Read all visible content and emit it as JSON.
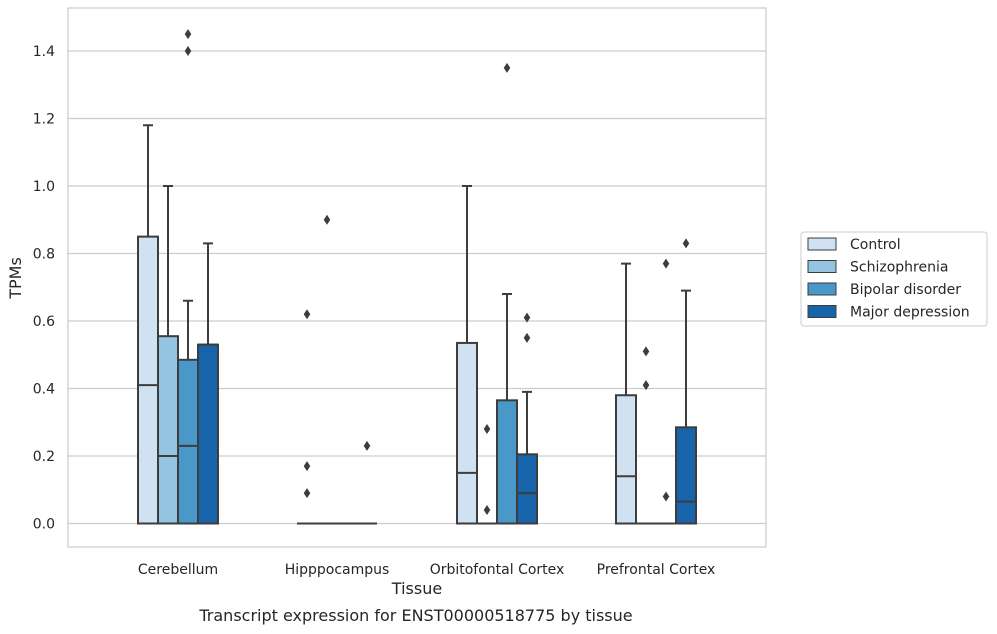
{
  "caption": "Transcript expression for ENST00000518775 by tissue",
  "chart_data": {
    "type": "boxplot",
    "title": "",
    "xlabel": "Tissue",
    "ylabel": "TPMs",
    "ylim": [
      -0.07,
      1.53
    ],
    "yticks": [
      0.0,
      0.2,
      0.4,
      0.6,
      0.8,
      1.0,
      1.2,
      1.4
    ],
    "ytick_labels": [
      "0.0",
      "0.2",
      "0.4",
      "0.6",
      "0.8",
      "1.0",
      "1.2",
      "1.4"
    ],
    "grid": "horizontal",
    "legend_position": "right",
    "categories": [
      "Cerebellum",
      "Hipppocampus",
      "Orbitofontal Cortex",
      "Prefrontal Cortex"
    ],
    "series": [
      {
        "name": "Control",
        "color": "#d0e1f2",
        "boxes": [
          {
            "q1": 0.0,
            "median": 0.41,
            "q3": 0.85,
            "whisker_low": 0.0,
            "whisker_high": 1.18,
            "outliers": []
          },
          {
            "q1": 0.0,
            "median": 0.0,
            "q3": 0.0,
            "whisker_low": 0.0,
            "whisker_high": 0.0,
            "outliers": [
              0.09,
              0.17,
              0.62
            ]
          },
          {
            "q1": 0.0,
            "median": 0.15,
            "q3": 0.535,
            "whisker_low": 0.0,
            "whisker_high": 1.0,
            "outliers": []
          },
          {
            "q1": 0.0,
            "median": 0.14,
            "q3": 0.38,
            "whisker_low": 0.0,
            "whisker_high": 0.77,
            "outliers": []
          }
        ]
      },
      {
        "name": "Schizophrenia",
        "color": "#94c4df",
        "boxes": [
          {
            "q1": 0.0,
            "median": 0.2,
            "q3": 0.555,
            "whisker_low": 0.0,
            "whisker_high": 1.0,
            "outliers": []
          },
          {
            "q1": 0.0,
            "median": 0.0,
            "q3": 0.0,
            "whisker_low": 0.0,
            "whisker_high": 0.0,
            "outliers": [
              0.9
            ]
          },
          {
            "q1": 0.0,
            "median": 0.0,
            "q3": 0.0,
            "whisker_low": 0.0,
            "whisker_high": 0.0,
            "outliers": [
              0.04,
              0.28
            ]
          },
          {
            "q1": 0.0,
            "median": 0.0,
            "q3": 0.0,
            "whisker_low": 0.0,
            "whisker_high": 0.0,
            "outliers": [
              0.41,
              0.51
            ]
          }
        ]
      },
      {
        "name": "Bipolar disorder",
        "color": "#4a98c9",
        "boxes": [
          {
            "q1": 0.0,
            "median": 0.23,
            "q3": 0.485,
            "whisker_low": 0.0,
            "whisker_high": 0.66,
            "outliers": [
              1.4,
              1.45
            ]
          },
          {
            "q1": 0.0,
            "median": 0.0,
            "q3": 0.0,
            "whisker_low": 0.0,
            "whisker_high": 0.0,
            "outliers": []
          },
          {
            "q1": 0.0,
            "median": 0.0,
            "q3": 0.365,
            "whisker_low": 0.0,
            "whisker_high": 0.68,
            "outliers": [
              1.35
            ]
          },
          {
            "q1": 0.0,
            "median": 0.0,
            "q3": 0.0,
            "whisker_low": 0.0,
            "whisker_high": 0.0,
            "outliers": [
              0.08,
              0.77
            ]
          }
        ]
      },
      {
        "name": "Major depression",
        "color": "#1764ab",
        "boxes": [
          {
            "q1": 0.0,
            "median": 0.53,
            "q3": 0.53,
            "whisker_low": 0.0,
            "whisker_high": 0.83,
            "outliers": []
          },
          {
            "q1": 0.0,
            "median": 0.0,
            "q3": 0.0,
            "whisker_low": 0.0,
            "whisker_high": 0.0,
            "outliers": [
              0.23
            ]
          },
          {
            "q1": 0.0,
            "median": 0.09,
            "q3": 0.205,
            "whisker_low": 0.0,
            "whisker_high": 0.39,
            "outliers": [
              0.55,
              0.61
            ]
          },
          {
            "q1": 0.0,
            "median": 0.065,
            "q3": 0.285,
            "whisker_low": 0.0,
            "whisker_high": 0.69,
            "outliers": [
              0.83
            ]
          }
        ]
      }
    ]
  }
}
